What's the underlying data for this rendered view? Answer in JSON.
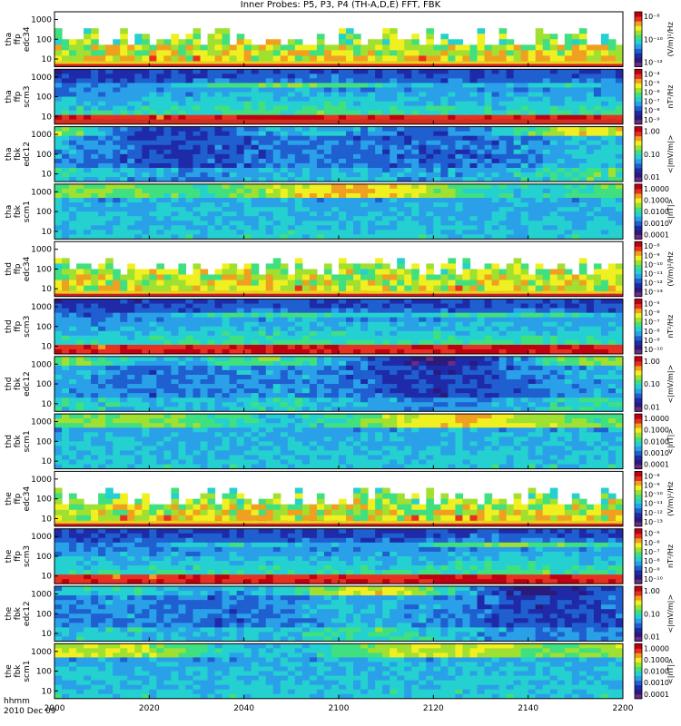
{
  "title": "Inner Probes: P5, P3, P4 (TH-A,D,E) FFT, FBK",
  "footer": {
    "time_label": "hhmm",
    "date_label": "2010 Dec 09"
  },
  "colors": {
    "spectrogram_scale": [
      "#6a2a85",
      "#2a1a7a",
      "#1f2aa8",
      "#1f5fd0",
      "#2aa0e8",
      "#24d0d0",
      "#40e080",
      "#a0e030",
      "#f0f020",
      "#f0a020",
      "#e83020",
      "#c00010"
    ]
  },
  "chart_data": {
    "type": "heatmap",
    "x_axis": {
      "ticks": [
        "2000",
        "2020",
        "2040",
        "2100",
        "2120",
        "2140",
        "2200"
      ]
    },
    "panels": [
      {
        "id": "tha-ffp-edc34",
        "ylabel": [
          "tha",
          "ffp",
          "edc34"
        ],
        "yscale": "log",
        "yticks": [
          "1000",
          "100",
          "10"
        ],
        "unit": "(V/m)²/Hz",
        "cticks": [
          "10⁻⁸",
          "10⁻¹⁰",
          "10⁻¹²"
        ],
        "style": "sparse",
        "seed": 11
      },
      {
        "id": "tha-ffp-scm3",
        "ylabel": [
          "tha",
          "ffp",
          "scm3"
        ],
        "yscale": "log",
        "yticks": [
          "1000",
          "100",
          "10"
        ],
        "unit": "nT²/Hz",
        "cticks": [
          "10⁻⁴",
          "10⁻⁵",
          "10⁻⁶",
          "10⁻⁷",
          "10⁻⁸",
          "10⁻⁹"
        ],
        "style": "scm",
        "seed": 23
      },
      {
        "id": "tha-fbk-edc12",
        "ylabel": [
          "tha",
          "fbk",
          "edc12"
        ],
        "yscale": "log",
        "yticks": [
          "1000",
          "100",
          "10"
        ],
        "unit": "<|mV/m|>",
        "cticks": [
          "1.00",
          "0.10",
          "0.01"
        ],
        "style": "fbk_e",
        "seed": 37
      },
      {
        "id": "tha-fbk-scm1",
        "ylabel": [
          "tha",
          "fbk",
          "scm1"
        ],
        "yscale": "log",
        "yticks": [
          "1000",
          "100",
          "10"
        ],
        "unit": "<|nT|>",
        "cticks": [
          "1.0000",
          "0.1000",
          "0.0100",
          "0.0010",
          "0.0001"
        ],
        "style": "fbk_b",
        "seed": 41
      },
      {
        "id": "thd-ffp-edc34",
        "ylabel": [
          "thd",
          "ffp",
          "edc34"
        ],
        "yscale": "log",
        "yticks": [
          "1000",
          "100",
          "10"
        ],
        "unit": "(V/m)²/Hz",
        "cticks": [
          "10⁻⁸",
          "10⁻⁹",
          "10⁻¹⁰",
          "10⁻¹¹",
          "10⁻¹²",
          "10⁻¹³"
        ],
        "style": "sparse",
        "seed": 53
      },
      {
        "id": "thd-ffp-scm3",
        "ylabel": [
          "thd",
          "ffp",
          "scm3"
        ],
        "yscale": "log",
        "yticks": [
          "1000",
          "100",
          "10"
        ],
        "unit": "nT²/Hz",
        "cticks": [
          "10⁻⁵",
          "10⁻⁶",
          "10⁻⁷",
          "10⁻⁸",
          "10⁻⁹",
          "10⁻¹⁰"
        ],
        "style": "scm",
        "seed": 67
      },
      {
        "id": "thd-fbk-edc12",
        "ylabel": [
          "thd",
          "fbk",
          "edc12"
        ],
        "yscale": "log",
        "yticks": [
          "1000",
          "100",
          "10"
        ],
        "unit": "<|mV/m|>",
        "cticks": [
          "1.00",
          "0.10",
          "0.01"
        ],
        "style": "fbk_e",
        "seed": 71
      },
      {
        "id": "thd-fbk-scm1",
        "ylabel": [
          "thd",
          "fbk",
          "scm1"
        ],
        "yscale": "log",
        "yticks": [
          "1000",
          "100",
          "10"
        ],
        "unit": "<|nT|>",
        "cticks": [
          "1.0000",
          "0.1000",
          "0.0100",
          "0.0010",
          "0.0001"
        ],
        "style": "fbk_b",
        "seed": 83
      },
      {
        "id": "the-ffp-edc34",
        "ylabel": [
          "the",
          "ffp",
          "edc34"
        ],
        "yscale": "log",
        "yticks": [
          "1000",
          "100",
          "10"
        ],
        "unit": "(V/m)²/Hz",
        "cticks": [
          "10⁻⁸",
          "10⁻⁹",
          "10⁻¹⁰",
          "10⁻¹¹",
          "10⁻¹²",
          "10⁻¹³"
        ],
        "style": "sparse",
        "seed": 97
      },
      {
        "id": "the-ffp-scm3",
        "ylabel": [
          "the",
          "ffp",
          "scm3"
        ],
        "yscale": "log",
        "yticks": [
          "1000",
          "100",
          "10"
        ],
        "unit": "nT²/Hz",
        "cticks": [
          "10⁻⁵",
          "10⁻⁶",
          "10⁻⁷",
          "10⁻⁸",
          "10⁻⁹",
          "10⁻¹⁰"
        ],
        "style": "scm",
        "seed": 101
      },
      {
        "id": "the-fbk-edc12",
        "ylabel": [
          "the",
          "fbk",
          "edc12"
        ],
        "yscale": "log",
        "yticks": [
          "1000",
          "100",
          "10"
        ],
        "unit": "<|mV/m|>",
        "cticks": [
          "1.00",
          "0.10",
          "0.01"
        ],
        "style": "fbk_e",
        "seed": 113
      },
      {
        "id": "the-fbk-scm1",
        "ylabel": [
          "the",
          "fbk",
          "scm1"
        ],
        "yscale": "log",
        "yticks": [
          "1000",
          "100",
          "10"
        ],
        "unit": "<|nT|>",
        "cticks": [
          "1.0000",
          "0.1000",
          "0.0100",
          "0.0010",
          "0.0001"
        ],
        "style": "fbk_b",
        "seed": 127
      }
    ]
  }
}
